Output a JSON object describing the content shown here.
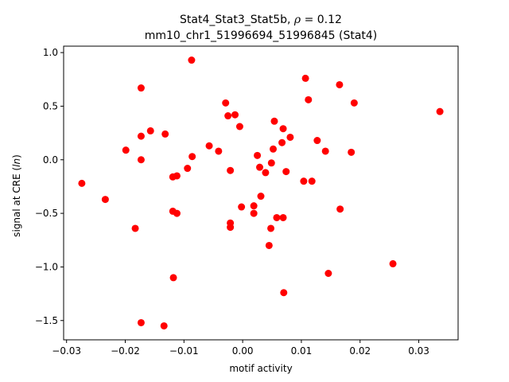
{
  "chart_data": {
    "type": "scatter",
    "title_line1_prefix": "Stat4_Stat3_Stat5b, ",
    "title_rho_symbol": "ρ",
    "title_rho_value": " = 0.12",
    "title_line2": "mm10_chr1_51996694_51996845 (Stat4)",
    "xlabel": "motif activity",
    "ylabel_prefix": "signal at CRE (",
    "ylabel_italic": "ln",
    "ylabel_suffix": ")",
    "xlim": [
      -0.0305,
      0.0367
    ],
    "ylim": [
      -1.68,
      1.06
    ],
    "xticks": [
      -0.03,
      -0.02,
      -0.01,
      0.0,
      0.01,
      0.02,
      0.03
    ],
    "xtick_labels": [
      "−0.03",
      "−0.02",
      "−0.01",
      "0.00",
      "0.01",
      "0.02",
      "0.03"
    ],
    "yticks": [
      -1.5,
      -1.0,
      -0.5,
      0.0,
      0.5,
      1.0
    ],
    "ytick_labels": [
      "−1.5",
      "−1.0",
      "−0.5",
      "0.0",
      "0.5",
      "1.0"
    ],
    "grid": false,
    "marker_color": "#ff0000",
    "points": [
      {
        "x": -0.0274,
        "y": -0.22
      },
      {
        "x": -0.0234,
        "y": -0.37
      },
      {
        "x": -0.0199,
        "y": 0.09
      },
      {
        "x": -0.0183,
        "y": -0.64
      },
      {
        "x": -0.0173,
        "y": 0.67
      },
      {
        "x": -0.0173,
        "y": 0.22
      },
      {
        "x": -0.0173,
        "y": 0.0
      },
      {
        "x": -0.0173,
        "y": -1.52
      },
      {
        "x": -0.0157,
        "y": 0.27
      },
      {
        "x": -0.0134,
        "y": -1.55
      },
      {
        "x": -0.0132,
        "y": 0.24
      },
      {
        "x": -0.0119,
        "y": -0.16
      },
      {
        "x": -0.0119,
        "y": -0.48
      },
      {
        "x": -0.0118,
        "y": -1.1
      },
      {
        "x": -0.0112,
        "y": -0.15
      },
      {
        "x": -0.0112,
        "y": -0.5
      },
      {
        "x": -0.0094,
        "y": -0.08
      },
      {
        "x": -0.0087,
        "y": 0.93
      },
      {
        "x": -0.0086,
        "y": 0.03
      },
      {
        "x": -0.0057,
        "y": 0.13
      },
      {
        "x": -0.0041,
        "y": 0.08
      },
      {
        "x": -0.0029,
        "y": 0.53
      },
      {
        "x": -0.0025,
        "y": 0.41
      },
      {
        "x": -0.0021,
        "y": -0.1
      },
      {
        "x": -0.0021,
        "y": -0.59
      },
      {
        "x": -0.0021,
        "y": -0.63
      },
      {
        "x": -0.0013,
        "y": 0.42
      },
      {
        "x": -0.0005,
        "y": 0.31
      },
      {
        "x": -0.0002,
        "y": -0.44
      },
      {
        "x": 0.0019,
        "y": -0.43
      },
      {
        "x": 0.0019,
        "y": -0.5
      },
      {
        "x": 0.0025,
        "y": 0.04
      },
      {
        "x": 0.0029,
        "y": -0.07
      },
      {
        "x": 0.0031,
        "y": -0.34
      },
      {
        "x": 0.0039,
        "y": -0.12
      },
      {
        "x": 0.0045,
        "y": -0.8
      },
      {
        "x": 0.0048,
        "y": -0.64
      },
      {
        "x": 0.0049,
        "y": -0.03
      },
      {
        "x": 0.0052,
        "y": 0.1
      },
      {
        "x": 0.0054,
        "y": 0.36
      },
      {
        "x": 0.0058,
        "y": -0.54
      },
      {
        "x": 0.0067,
        "y": 0.16
      },
      {
        "x": 0.0069,
        "y": 0.29
      },
      {
        "x": 0.0069,
        "y": -0.54
      },
      {
        "x": 0.007,
        "y": -1.24
      },
      {
        "x": 0.0074,
        "y": -0.11
      },
      {
        "x": 0.0081,
        "y": 0.21
      },
      {
        "x": 0.0104,
        "y": -0.2
      },
      {
        "x": 0.0107,
        "y": 0.76
      },
      {
        "x": 0.0112,
        "y": 0.56
      },
      {
        "x": 0.0118,
        "y": -0.2
      },
      {
        "x": 0.0127,
        "y": 0.18
      },
      {
        "x": 0.0141,
        "y": 0.08
      },
      {
        "x": 0.0146,
        "y": -1.06
      },
      {
        "x": 0.0165,
        "y": 0.7
      },
      {
        "x": 0.0166,
        "y": -0.46
      },
      {
        "x": 0.0185,
        "y": 0.07
      },
      {
        "x": 0.019,
        "y": 0.53
      },
      {
        "x": 0.0256,
        "y": -0.97
      },
      {
        "x": 0.0336,
        "y": 0.45
      }
    ]
  }
}
